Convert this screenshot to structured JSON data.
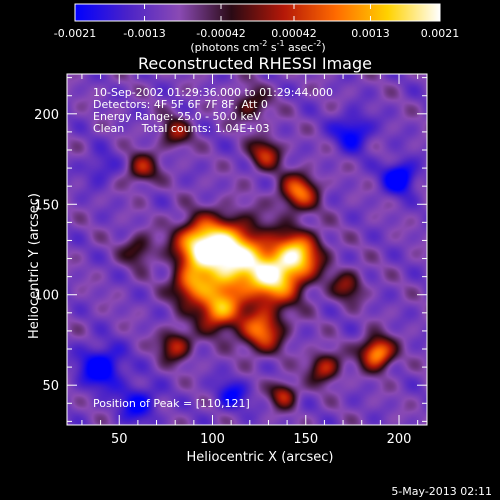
{
  "colorbar": {
    "tick_labels": [
      "-0.0021",
      "-0.0013",
      "-0.00042",
      "0.00042",
      "0.0013",
      "0.0021"
    ],
    "ticks": [
      -0.0021,
      -0.0013,
      -0.00042,
      0.00042,
      0.0013,
      0.0021
    ],
    "units_prefix": "(photons cm",
    "units_exp1": "-2",
    "units_mid": " s",
    "units_exp2": "-1",
    "units_mid2": " asec",
    "units_exp3": "-2",
    "units_suffix": ")",
    "colors": [
      "#0000ff",
      "#4a22c8",
      "#8a4ab4",
      "#2a0a14",
      "#b41808",
      "#ff6a00",
      "#ffd200",
      "#ffffff"
    ]
  },
  "chart_data": {
    "type": "heatmap",
    "title": "Reconstructed RHESSI Image",
    "xlabel": "Heliocentric X (arcsec)",
    "ylabel": "Heliocentric Y (arcsec)",
    "xlim": [
      22,
      215
    ],
    "ylim": [
      28,
      222
    ],
    "xticks": [
      50,
      100,
      150,
      200
    ],
    "yticks": [
      50,
      100,
      150,
      200
    ],
    "peak": [
      110,
      121
    ],
    "vmin": -0.0021,
    "vmax": 0.0021,
    "sources": [
      {
        "x": 110,
        "y": 121,
        "amp": 1.0,
        "sigma": 13
      },
      {
        "x": 93,
        "y": 128,
        "amp": 0.75,
        "sigma": 9
      },
      {
        "x": 132,
        "y": 108,
        "amp": 0.72,
        "sigma": 10
      },
      {
        "x": 145,
        "y": 122,
        "amp": 0.8,
        "sigma": 9
      },
      {
        "x": 103,
        "y": 92,
        "amp": 0.7,
        "sigma": 8
      },
      {
        "x": 126,
        "y": 80,
        "amp": 0.6,
        "sigma": 8
      },
      {
        "x": 88,
        "y": 105,
        "amp": 0.55,
        "sigma": 7
      },
      {
        "x": 80,
        "y": 72,
        "amp": 0.45,
        "sigma": 6
      },
      {
        "x": 146,
        "y": 157,
        "amp": 0.6,
        "sigma": 7
      },
      {
        "x": 128,
        "y": 178,
        "amp": 0.45,
        "sigma": 6
      },
      {
        "x": 188,
        "y": 68,
        "amp": 0.75,
        "sigma": 6
      },
      {
        "x": 160,
        "y": 60,
        "amp": 0.45,
        "sigma": 6
      },
      {
        "x": 62,
        "y": 170,
        "amp": 0.4,
        "sigma": 6
      },
      {
        "x": 80,
        "y": 190,
        "amp": 0.35,
        "sigma": 6
      },
      {
        "x": 138,
        "y": 45,
        "amp": 0.45,
        "sigma": 5
      },
      {
        "x": 172,
        "y": 105,
        "amp": 0.35,
        "sigma": 6
      },
      {
        "x": 120,
        "y": 205,
        "amp": 0.3,
        "sigma": 7
      },
      {
        "x": 60,
        "y": 125,
        "amp": 0.3,
        "sigma": 6
      },
      {
        "x": 40,
        "y": 60,
        "amp": -0.45,
        "sigma": 8
      },
      {
        "x": 60,
        "y": 40,
        "amp": -0.35,
        "sigma": 7
      },
      {
        "x": 200,
        "y": 165,
        "amp": -0.5,
        "sigma": 6
      },
      {
        "x": 110,
        "y": 45,
        "amp": -0.3,
        "sigma": 6
      },
      {
        "x": 175,
        "y": 190,
        "amp": -0.35,
        "sigma": 7
      },
      {
        "x": 40,
        "y": 170,
        "amp": -0.2,
        "sigma": 6
      }
    ]
  },
  "info": {
    "time_range": "10-Sep-2002 01:29:36.000 to 01:29:44.000",
    "detectors": "Detectors: 4F 5F 6F 7F 8F, Att 0",
    "energy": "Energy Range: 25.0 - 50.0 keV",
    "clean": "Clean     Total counts: 1.04E+03",
    "peak_label": "Position of Peak = [110,121]"
  },
  "footer": {
    "date": "5-May-2013 02:11"
  }
}
